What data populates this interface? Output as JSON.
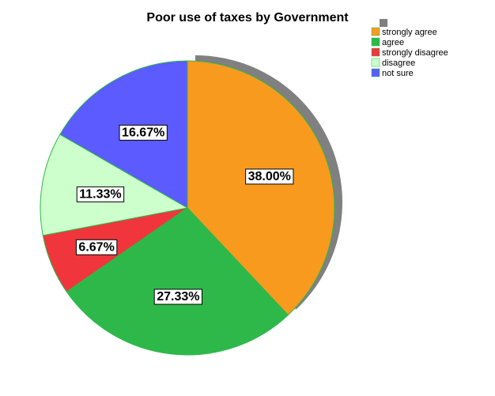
{
  "chart_data": {
    "type": "pie",
    "title": "Poor use  of taxes by Government",
    "start_angle_deg": 0,
    "direction": "clockwise",
    "legend_position": "top-right",
    "slices": [
      {
        "label": "strongly agree",
        "value": 38.0,
        "data_label": "38.00%",
        "color": "#F89A1E"
      },
      {
        "label": "agree",
        "value": 27.33,
        "data_label": "27.33%",
        "color": "#2EB84A"
      },
      {
        "label": "strongly disagree",
        "value": 6.67,
        "data_label": "6.67%",
        "color": "#F0363C"
      },
      {
        "label": "disagree",
        "value": 11.33,
        "data_label": "11.33%",
        "color": "#CCFFCC"
      },
      {
        "label": "not sure",
        "value": 16.67,
        "data_label": "16.67%",
        "color": "#5B5BFF"
      }
    ],
    "legend_extra_swatch_color": "#808080",
    "shadow_color": "#808080",
    "edge_color": "#2EB84A"
  }
}
